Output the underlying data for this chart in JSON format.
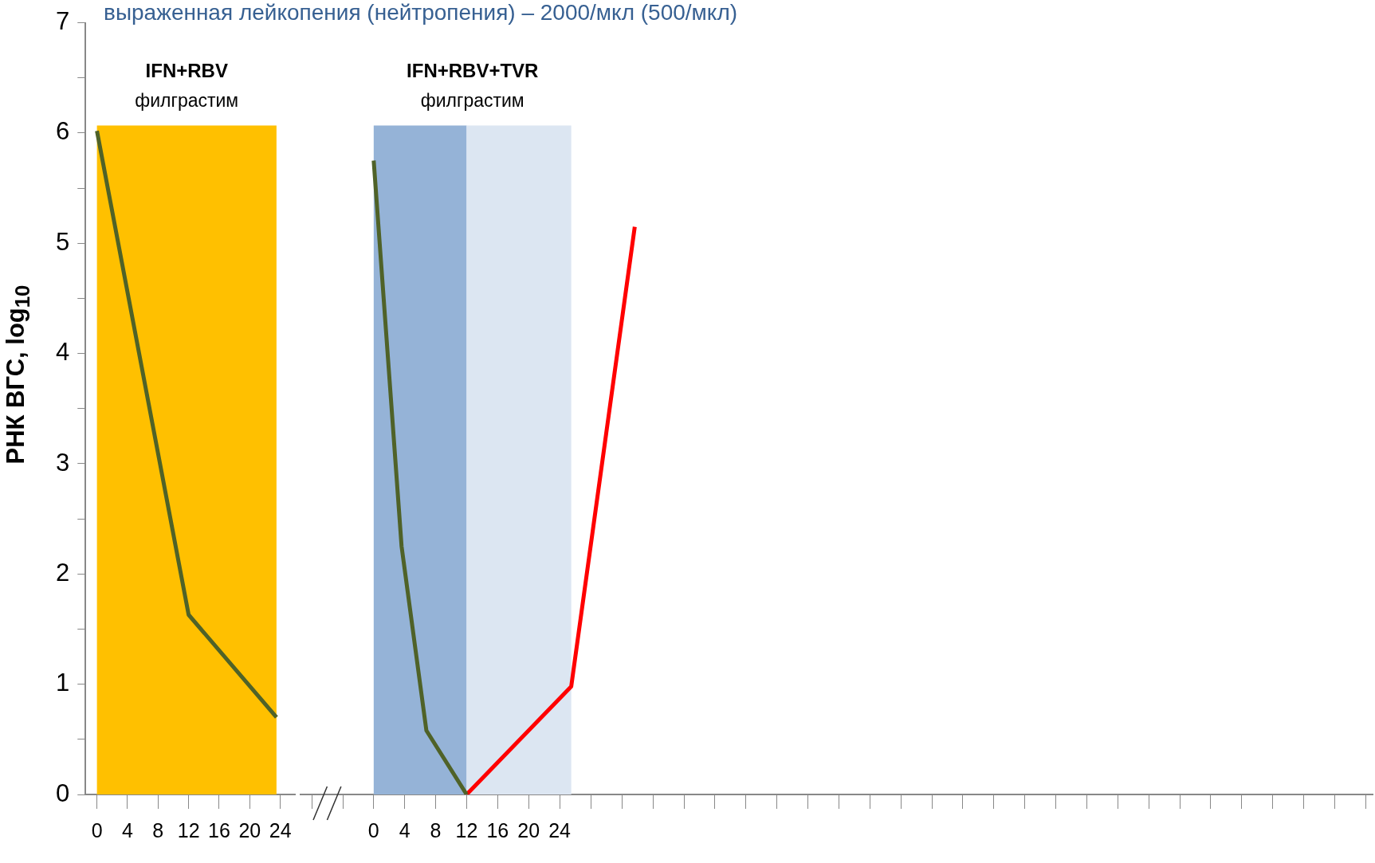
{
  "chart_data": [
    {
      "type": "line",
      "title": "выраженная лейкопения (нейтропения) – 2000/мкл (500/мкл)",
      "ylabel": "РНК ВГС, log$_{10}$",
      "xlim": [
        -1.5,
        26
      ],
      "ylim": [
        0,
        7
      ],
      "xticks": [
        0,
        4,
        8,
        12,
        16,
        20,
        24
      ],
      "yticks": [
        0,
        {
          "value": 0.5,
          "label": null
        },
        1,
        {
          "value": 1.5,
          "label": null
        },
        2,
        {
          "value": 2.5,
          "label": null
        },
        3,
        {
          "value": 3.5,
          "label": null
        },
        4,
        {
          "value": 4.5,
          "label": null
        },
        5,
        {
          "value": 5.5,
          "label": null
        },
        6,
        {
          "value": 6.5,
          "label": null
        },
        7
      ],
      "bands": [
        {
          "axis": "x",
          "from": 0,
          "to": 23.5,
          "color": "#ffc000"
        }
      ],
      "series": [
        {
          "color": "#4f6228",
          "x": [
            0,
            12,
            23.5
          ],
          "values": [
            6.02,
            1.63,
            0.7
          ]
        }
      ],
      "annotations": [
        "IFN+RBV",
        "филграстим"
      ],
      "grid": false,
      "marker": "none",
      "line_style": "solid"
    },
    {
      "type": "line",
      "xlim": [
        -9.5,
        129
      ],
      "ylim": [
        0,
        7
      ],
      "tick_labels": "x",
      "xticks": [
        0,
        4,
        8,
        12,
        16,
        20,
        24
      ],
      "bands": [
        {
          "axis": "x",
          "from": 0,
          "to": 12,
          "color": "#95b3d7"
        },
        {
          "axis": "x",
          "from": 12,
          "to": 25.5,
          "color": "#dce6f2"
        }
      ],
      "series": [
        {
          "color": "#4f6228",
          "x": [
            0,
            3.6,
            6.8,
            12
          ],
          "values": [
            5.75,
            2.25,
            0.58,
            0
          ]
        },
        {
          "color": "#ff0000",
          "x": [
            12,
            25.5,
            33.7
          ],
          "values": [
            0,
            0.98,
            5.15
          ]
        }
      ],
      "annotations": [
        "IFN+RBV+TVR",
        "филграстим"
      ],
      "grid": false,
      "marker": "none",
      "line_style": "solid"
    }
  ]
}
